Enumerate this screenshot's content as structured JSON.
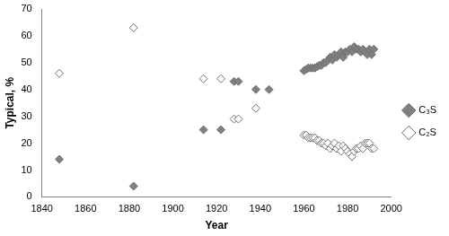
{
  "chart_data": {
    "type": "scatter",
    "x_label": "Year",
    "y_label": "Typical, %",
    "x": [
      1848,
      1882,
      1914,
      1922,
      1928,
      1930,
      1938,
      1944,
      1960,
      1961,
      1962,
      1963,
      1964,
      1965,
      1966,
      1967,
      1968,
      1969,
      1970,
      1971,
      1972,
      1973,
      1974,
      1975,
      1976,
      1977,
      1978,
      1979,
      1980,
      1981,
      1982,
      1983,
      1984,
      1985,
      1986,
      1987,
      1988,
      1989,
      1990,
      1991,
      1992
    ],
    "series": [
      {
        "name": "C₃S",
        "color": "#808080",
        "marker": "diamond",
        "values": [
          14,
          4,
          25,
          25,
          43,
          43,
          40,
          40,
          47,
          47.5,
          48,
          48,
          48,
          48,
          48.5,
          49,
          49,
          50,
          50,
          51,
          52,
          51,
          53,
          52,
          53,
          54,
          52,
          54,
          54,
          55,
          54,
          56,
          55,
          55,
          54,
          55,
          54,
          53,
          55,
          53,
          55
        ]
      },
      {
        "name": "C₂S",
        "color": "#ffffff",
        "marker": "diamond",
        "values": [
          46,
          63,
          44,
          44,
          29,
          29,
          33,
          null,
          23,
          23,
          22,
          22,
          22,
          22,
          21,
          21,
          20,
          20,
          19,
          20,
          18,
          19,
          20,
          18,
          19,
          17,
          19,
          18,
          17,
          16,
          15,
          17,
          18,
          18,
          19,
          18,
          20,
          20,
          20,
          18,
          18
        ]
      }
    ],
    "xlim": [
      1840,
      2000
    ],
    "xticks": [
      1840,
      1860,
      1880,
      1900,
      1920,
      1940,
      1960,
      1980,
      2000
    ],
    "ylim": [
      0,
      70
    ],
    "yticks": [
      0,
      10,
      20,
      30,
      40,
      50,
      60,
      70
    ],
    "grid": false,
    "legend": "right"
  }
}
